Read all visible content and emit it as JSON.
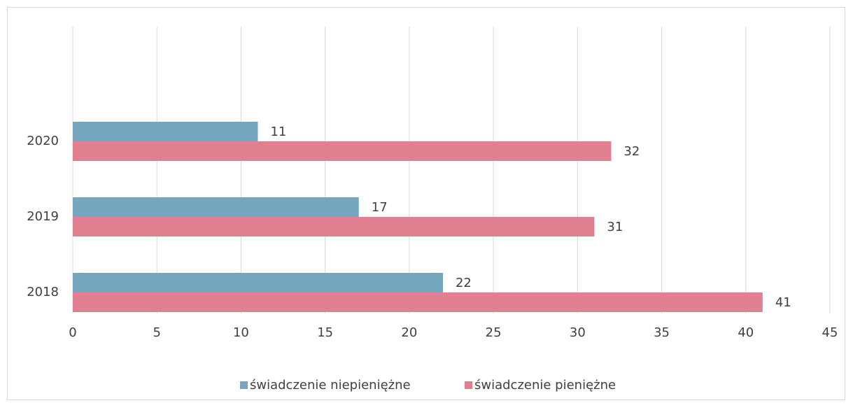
{
  "chart_data": {
    "type": "hbar",
    "categories": [
      "2018",
      "2019",
      "2020"
    ],
    "series": [
      {
        "name": "świadczenie niepieniężne",
        "color": "#76a5bf",
        "values": [
          22,
          17,
          11
        ]
      },
      {
        "name": "świadczenie pieniężne",
        "color": "#e07f8f",
        "values": [
          41,
          31,
          32
        ]
      }
    ],
    "xlim": [
      0,
      45
    ],
    "xticks": [
      0,
      5,
      10,
      15,
      20,
      25,
      30,
      35,
      40,
      45
    ],
    "grid": true,
    "legend": "bottom"
  }
}
